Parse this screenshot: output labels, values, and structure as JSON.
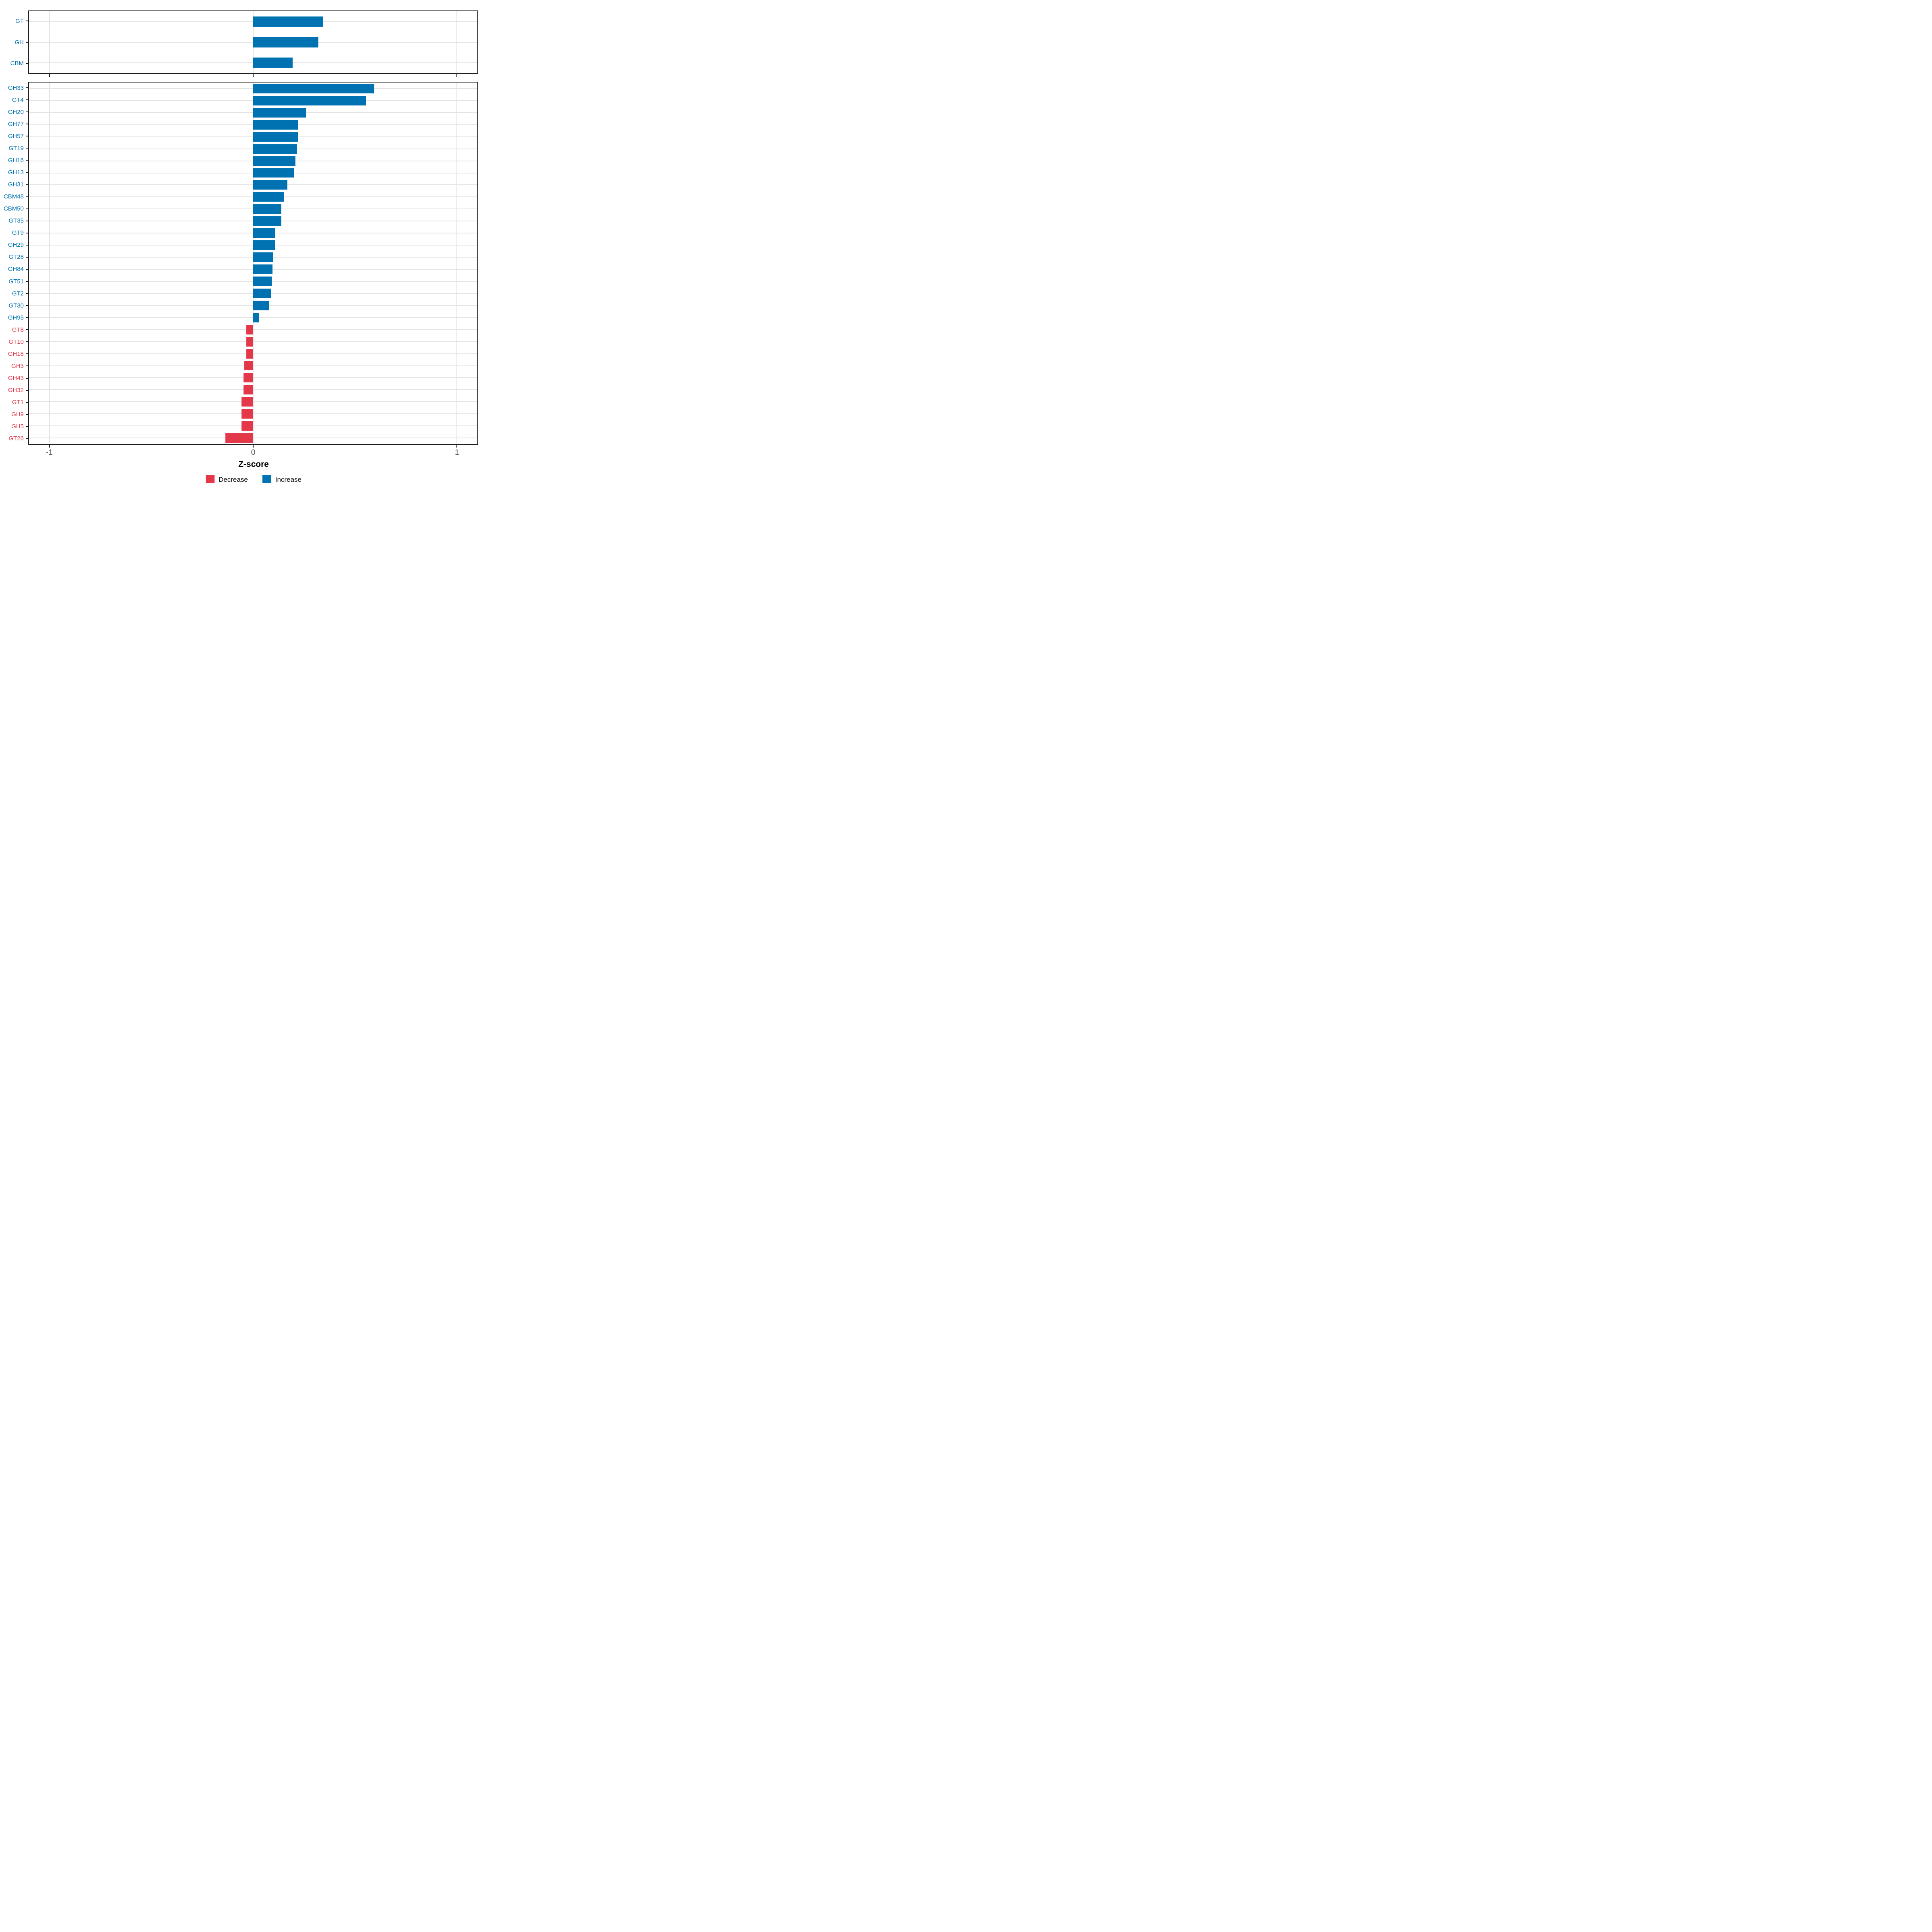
{
  "chart_data": {
    "type": "bar",
    "orientation": "horizontal",
    "title": "",
    "xlabel": "Z-score",
    "ylabel": "",
    "xlim": [
      -1.1,
      1.1
    ],
    "x_ticks": [
      -1,
      0,
      1
    ],
    "x_tick_labels": [
      "-1",
      "0",
      "1"
    ],
    "grid": "major-only",
    "legend_position": "bottom",
    "colors": {
      "increase": "#0072b2",
      "decrease": "#e3384a"
    },
    "legend": [
      {
        "label": "Decrease",
        "color": "#e3384a"
      },
      {
        "label": "Increase",
        "color": "#0072b2"
      }
    ],
    "panels": [
      {
        "name": "summary",
        "bars": [
          {
            "label": "GT",
            "value": 0.344
          },
          {
            "label": "GH",
            "value": 0.319
          },
          {
            "label": "CBM",
            "value": 0.194
          }
        ]
      },
      {
        "name": "families",
        "bars": [
          {
            "label": "GH33",
            "value": 0.594
          },
          {
            "label": "GT4",
            "value": 0.554
          },
          {
            "label": "GH20",
            "value": 0.26
          },
          {
            "label": "GH77",
            "value": 0.222
          },
          {
            "label": "GH57",
            "value": 0.221
          },
          {
            "label": "GT19",
            "value": 0.216
          },
          {
            "label": "GH16",
            "value": 0.208
          },
          {
            "label": "GH13",
            "value": 0.201
          },
          {
            "label": "GH31",
            "value": 0.167
          },
          {
            "label": "CBM48",
            "value": 0.15
          },
          {
            "label": "CBM50",
            "value": 0.139
          },
          {
            "label": "GT35",
            "value": 0.139
          },
          {
            "label": "GT9",
            "value": 0.107
          },
          {
            "label": "GH29",
            "value": 0.106
          },
          {
            "label": "GT28",
            "value": 0.099
          },
          {
            "label": "GH84",
            "value": 0.095
          },
          {
            "label": "GT51",
            "value": 0.09
          },
          {
            "label": "GT2",
            "value": 0.088
          },
          {
            "label": "GT30",
            "value": 0.078
          },
          {
            "label": "GH95",
            "value": 0.028
          },
          {
            "label": "GT8",
            "value": -0.033
          },
          {
            "label": "GT10",
            "value": -0.033
          },
          {
            "label": "GH18",
            "value": -0.033
          },
          {
            "label": "GH3",
            "value": -0.044
          },
          {
            "label": "GH43",
            "value": -0.047
          },
          {
            "label": "GH32",
            "value": -0.047
          },
          {
            "label": "GT1",
            "value": -0.057
          },
          {
            "label": "GH9",
            "value": -0.057
          },
          {
            "label": "GH5",
            "value": -0.057
          },
          {
            "label": "GT26",
            "value": -0.136
          }
        ]
      }
    ]
  }
}
